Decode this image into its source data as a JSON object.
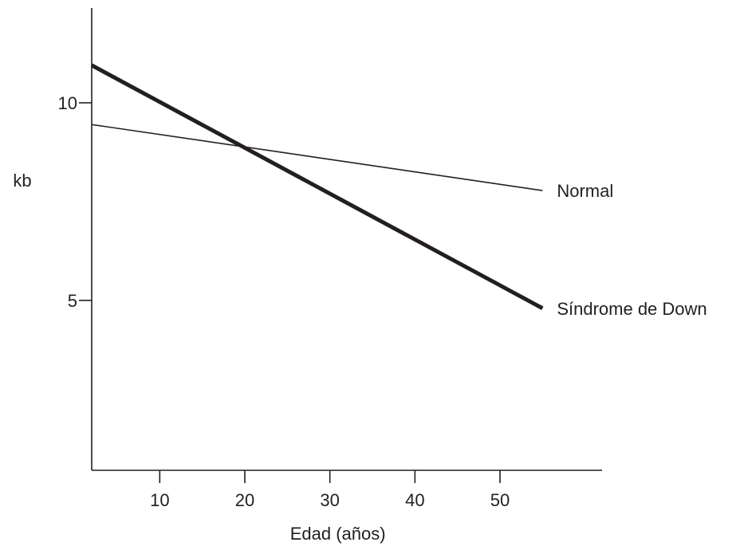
{
  "chart_data": {
    "type": "line",
    "xlabel": "Edad (años)",
    "ylabel": "kb",
    "xlim": [
      2,
      62
    ],
    "ylim": [
      0.7,
      12.4
    ],
    "x_ticks": [
      10,
      20,
      30,
      40,
      50
    ],
    "y_ticks": [
      5,
      10
    ],
    "grid": false,
    "series": [
      {
        "name": "Normal",
        "x": [
          2,
          55
        ],
        "y": [
          9.45,
          7.78
        ],
        "color": "#231f20",
        "style": "thin"
      },
      {
        "name": "Síndrome de Down",
        "x": [
          2,
          55
        ],
        "y": [
          10.95,
          4.8
        ],
        "color": "#231f20",
        "style": "thick"
      }
    ]
  }
}
